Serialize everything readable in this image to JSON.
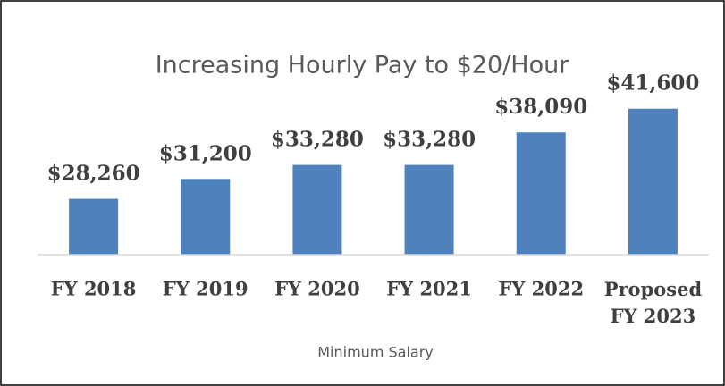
{
  "chart_data": {
    "type": "bar",
    "title": "Increasing Hourly Pay to $20/Hour",
    "x_label": "Minimum Salary",
    "categories": [
      "FY 2018",
      "FY 2019",
      "FY 2020",
      "FY 2021",
      "FY 2022",
      "Proposed FY 2023"
    ],
    "values": [
      28260,
      31200,
      33280,
      33280,
      38090,
      41600
    ],
    "value_labels": [
      "$28,260",
      "$31,200",
      "$33,280",
      "$33,280",
      "$38,090",
      "$41,600"
    ],
    "color": "#4f81bd",
    "ylim": [
      20000,
      45000
    ]
  }
}
